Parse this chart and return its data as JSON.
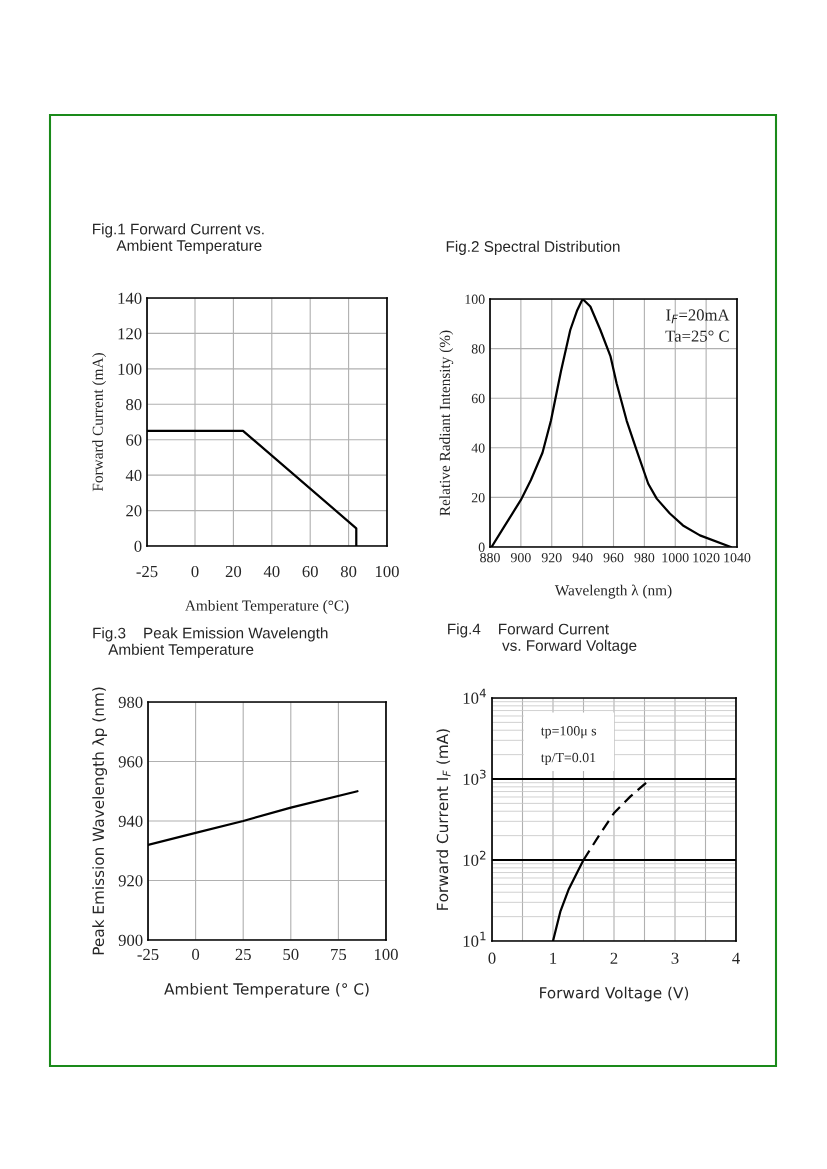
{
  "chart_data": [
    {
      "type": "line",
      "title": "Fig.1 Forward Current vs.\n      Ambient Temperature",
      "xlabel": "Ambient Temperature (°C)",
      "ylabel": "Forward Current (mA)",
      "series": [
        {
          "color": "#000000",
          "x": [
            -25,
            25,
            84,
            84
          ],
          "values": [
            65,
            65,
            10,
            0
          ]
        }
      ],
      "xlim": [
        -25,
        100
      ],
      "ylim": [
        0,
        140
      ],
      "xticks": [
        -25,
        0,
        20,
        40,
        60,
        80,
        100
      ],
      "yticks": [
        0,
        20,
        40,
        60,
        80,
        100,
        120,
        140
      ],
      "grid": true
    },
    {
      "type": "line",
      "title": "Fig.2 Spectral Distribution",
      "xlabel": "Wavelength λ (nm)",
      "ylabel": "Relative Radiant Intensity (%)",
      "series": [
        {
          "color": "#000000",
          "x": [
            881,
            889,
            900,
            906.5,
            914,
            919.5,
            926,
            932,
            936.5,
            940,
            945,
            951.5,
            958,
            962,
            968.5,
            975,
            982.5,
            988,
            996.5,
            1005,
            1016,
            1036
          ],
          "values": [
            0,
            8,
            19,
            27,
            38,
            51,
            71,
            87.5,
            95.5,
            100,
            97,
            87.5,
            77,
            66,
            51,
            39,
            25.5,
            19.5,
            13.5,
            8.7,
            4.7,
            0
          ]
        }
      ],
      "xlim": [
        880,
        1040
      ],
      "ylim": [
        0,
        100
      ],
      "xticks": [
        880,
        900,
        920,
        940,
        960,
        980,
        1000,
        1020,
        1040
      ],
      "yticks": [
        0,
        20,
        40,
        60,
        80,
        100
      ],
      "grid": true,
      "annotations": [
        "I$_{F}$=20mA",
        "Ta=25° C"
      ]
    },
    {
      "type": "line",
      "title": "Fig.3    Peak Emission Wavelength\n    Ambient Temperature",
      "xlabel": "Ambient Temperature (° C)",
      "ylabel": "Peak Emission Wavelength λp (nm)",
      "series": [
        {
          "color": "#000000",
          "x": [
            -25,
            0,
            25,
            50,
            85
          ],
          "values": [
            932,
            936,
            940,
            944.5,
            950
          ]
        }
      ],
      "xlim": [
        -25,
        100
      ],
      "ylim": [
        900,
        980
      ],
      "xticks": [
        -25,
        0,
        25,
        50,
        75,
        100
      ],
      "yticks": [
        900,
        920,
        940,
        960,
        980
      ],
      "grid": true
    },
    {
      "type": "line",
      "title": "Fig.4    Forward Current\n             vs. Forward Voltage",
      "xlabel": "Forward Voltage (V)",
      "ylabel": "Forward Current I$_{F}$ (mA)",
      "series": [
        {
          "color": "#000000",
          "line_style": "solid",
          "x": [
            1.0,
            1.12,
            1.26,
            1.4,
            1.5
          ],
          "values": [
            10,
            23,
            44,
            71,
            100
          ]
        },
        {
          "color": "#000000",
          "line_style": "dashed",
          "x": [
            1.5,
            1.78,
            2.0,
            2.27,
            2.6
          ],
          "values": [
            100,
            215,
            380,
            610,
            1000
          ]
        }
      ],
      "log": "y",
      "xlim": [
        0,
        4
      ],
      "ylim": [
        10,
        10000
      ],
      "xticks": [
        0,
        {
          "value": 0.5,
          "label": null
        },
        1,
        {
          "value": 1.5,
          "label": null
        },
        2,
        {
          "value": 2.5,
          "label": null
        },
        3,
        {
          "value": 3.5,
          "label": null
        },
        4
      ],
      "yticks": [
        {
          "value": 10,
          "label": "10$^{1}$"
        },
        {
          "value": 100,
          "label": "10$^{2}$"
        },
        {
          "value": 1000,
          "label": "10$^{3}$"
        },
        {
          "value": 10000,
          "label": "10$^{4}$"
        }
      ],
      "grid": true,
      "ref_lines": [
        {
          "axis": "y",
          "value": 100,
          "color": "#000000"
        },
        {
          "axis": "y",
          "value": 1000,
          "color": "#000000"
        }
      ],
      "annotations": [
        "tp=100μ s",
        "tp/T=0.01"
      ]
    }
  ]
}
